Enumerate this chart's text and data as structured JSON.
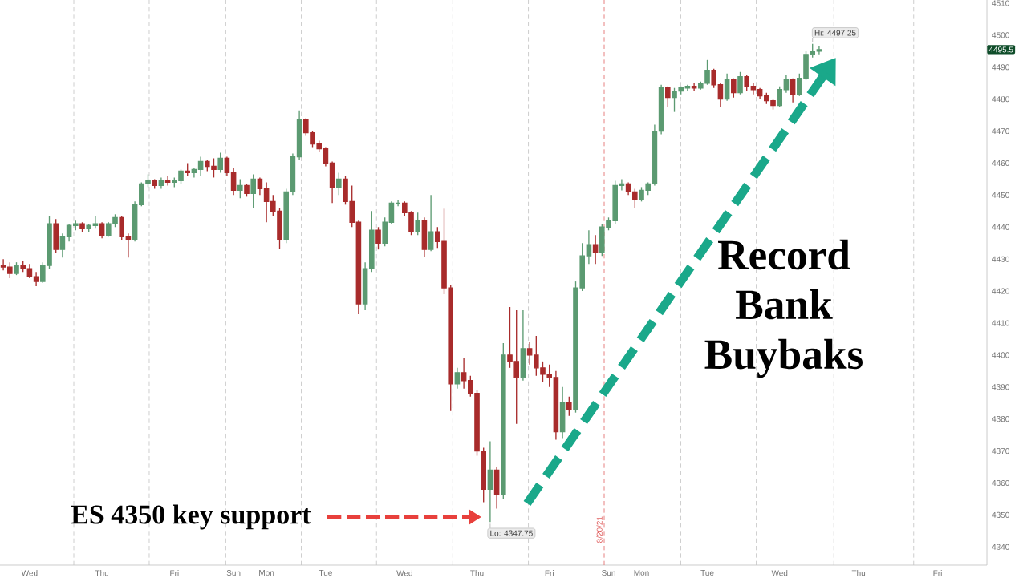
{
  "chart_data": {
    "type": "candlestick",
    "categories": [
      null,
      null,
      null,
      null,
      "Wed",
      null,
      null,
      null,
      null,
      null,
      null,
      null,
      null,
      null,
      null,
      "Thu",
      null,
      null,
      null,
      null,
      null,
      null,
      null,
      null,
      null,
      null,
      "Fri",
      null,
      null,
      null,
      null,
      null,
      null,
      null,
      null,
      "Sun",
      null,
      null,
      null,
      null,
      "Mon",
      null,
      null,
      null,
      null,
      null,
      null,
      null,
      null,
      "Tue",
      null,
      null,
      null,
      null,
      null,
      null,
      null,
      null,
      null,
      null,
      null,
      "Wed",
      null,
      null,
      null,
      null,
      null,
      null,
      null,
      null,
      null,
      null,
      "Thu",
      null,
      null,
      null,
      null,
      null,
      null,
      null,
      null,
      null,
      null,
      "Fri",
      null,
      null,
      null,
      null,
      null,
      null,
      null,
      null,
      "Sun",
      null,
      null,
      null,
      null,
      "Mon",
      null,
      null,
      null,
      null,
      null,
      null,
      null,
      null,
      null,
      "Tue",
      null,
      null,
      null,
      null,
      null,
      null,
      null,
      null,
      null,
      null,
      "Wed",
      null,
      null,
      null,
      null,
      null,
      null,
      null,
      null,
      null,
      null,
      null,
      "Thu",
      null,
      null,
      null,
      null,
      null,
      null,
      null,
      null,
      null,
      null,
      null,
      "Fri",
      null,
      null,
      null,
      null,
      null,
      null,
      null
    ],
    "ohlc": [
      [
        4428,
        4430,
        4426.5,
        4427.5
      ],
      [
        4427.5,
        4429,
        4424,
        4425.5
      ],
      [
        4425.5,
        4429,
        4425,
        4428
      ],
      [
        4428,
        4429.5,
        4426,
        4427
      ],
      [
        4427,
        4428.5,
        4424,
        4424.5
      ],
      [
        4424.5,
        4426,
        4421.5,
        4423
      ],
      [
        4423,
        4429,
        4422.5,
        4428
      ],
      [
        4428,
        4443.5,
        4427,
        4441
      ],
      [
        4441,
        4442.5,
        4432,
        4433
      ],
      [
        4433,
        4438,
        4430.5,
        4437
      ],
      [
        4437,
        4441,
        4435.5,
        4440.5
      ],
      [
        4440.5,
        4442,
        4439,
        4441
      ],
      [
        4441,
        4441.5,
        4438.5,
        4439.5
      ],
      [
        4439.5,
        4441,
        4438.5,
        4440.5
      ],
      [
        4440.5,
        4443.5,
        4439.5,
        4441
      ],
      [
        4441,
        4441.5,
        4436.5,
        4437.5
      ],
      [
        4437.5,
        4441.5,
        4437,
        4441
      ],
      [
        4441,
        4444,
        4440,
        4443
      ],
      [
        4443,
        4443.5,
        4436,
        4437
      ],
      [
        4437,
        4438,
        4430.5,
        4436
      ],
      [
        4436,
        4448,
        4435.5,
        4447
      ],
      [
        4447,
        4454,
        4446.5,
        4453.5
      ],
      [
        4453.5,
        4456.5,
        4452.5,
        4454.5
      ],
      [
        4454.5,
        4455,
        4452,
        4453
      ],
      [
        4453,
        4455.5,
        4452,
        4454.5
      ],
      [
        4454.5,
        4456,
        4453,
        4454
      ],
      [
        4454,
        4455.5,
        4452.5,
        4454.5
      ],
      [
        4454.5,
        4458,
        4453.5,
        4457.5
      ],
      [
        4457.5,
        4460,
        4456,
        4457
      ],
      [
        4457,
        4458.5,
        4455.5,
        4458
      ],
      [
        4458,
        4462,
        4456,
        4460.5
      ],
      [
        4460.5,
        4461,
        4457.5,
        4459
      ],
      [
        4459,
        4461.5,
        4455.5,
        4458
      ],
      [
        4458,
        4463.25,
        4457,
        4461.5
      ],
      [
        4461.5,
        4462,
        4456,
        4457
      ],
      [
        4457,
        4458.5,
        4450,
        4451.5
      ],
      [
        4451.5,
        4455,
        4449,
        4453
      ],
      [
        4453,
        4453.5,
        4449.5,
        4450.5
      ],
      [
        4450.5,
        4456.5,
        4446,
        4455
      ],
      [
        4455,
        4455.5,
        4450,
        4452
      ],
      [
        4452,
        4454,
        4441.5,
        4448
      ],
      [
        4448,
        4450,
        4443.5,
        4445
      ],
      [
        4445,
        4446,
        4433.25,
        4436
      ],
      [
        4436,
        4452,
        4435,
        4451
      ],
      [
        4451,
        4463,
        4450,
        4462
      ],
      [
        4462,
        4476.5,
        4461,
        4473.5
      ],
      [
        4473.5,
        4474,
        4468.5,
        4469.5
      ],
      [
        4469.5,
        4470,
        4465,
        4466
      ],
      [
        4466,
        4467,
        4463.5,
        4464.5
      ],
      [
        4464.5,
        4465,
        4459,
        4460
      ],
      [
        4460,
        4460.5,
        4447.5,
        4452.5
      ],
      [
        4452.5,
        4457,
        4450,
        4455
      ],
      [
        4455,
        4456,
        4447,
        4448
      ],
      [
        4448,
        4453,
        4440,
        4441.5
      ],
      [
        4441.5,
        4442,
        4412.75,
        4416
      ],
      [
        4416,
        4429,
        4414,
        4427
      ],
      [
        4427,
        4445,
        4426,
        4439
      ],
      [
        4439,
        4440,
        4433,
        4435
      ],
      [
        4435,
        4443,
        4434,
        4441.5
      ],
      [
        4441.5,
        4448,
        4441,
        4447.5
      ],
      [
        4447.5,
        4448.5,
        4446.5,
        4447.5
      ],
      [
        4447.5,
        4448,
        4443.5,
        4444.5
      ],
      [
        4444.5,
        4445,
        4437.5,
        4438.5
      ],
      [
        4438.5,
        4444.5,
        4437.5,
        4442
      ],
      [
        4442,
        4443,
        4430.75,
        4433
      ],
      [
        4433,
        4450,
        4432.5,
        4438.5
      ],
      [
        4438.5,
        4440,
        4433.5,
        4435.5
      ],
      [
        4435.5,
        4445.75,
        4419,
        4421
      ],
      [
        4421,
        4422,
        4382.5,
        4391
      ],
      [
        4391,
        4396,
        4389.5,
        4394.5
      ],
      [
        4394.5,
        4399,
        4389.5,
        4392
      ],
      [
        4392,
        4393.5,
        4387,
        4388
      ],
      [
        4388,
        4389,
        4368.5,
        4370
      ],
      [
        4370,
        4371,
        4354,
        4358
      ],
      [
        4358,
        4373,
        4347.75,
        4364
      ],
      [
        4364,
        4365,
        4352,
        4356.5
      ],
      [
        4356.5,
        4403.75,
        4355,
        4400
      ],
      [
        4400,
        4415,
        4396,
        4398
      ],
      [
        4398,
        4414,
        4378.5,
        4393
      ],
      [
        4393,
        4414,
        4392,
        4402
      ],
      [
        4402,
        4404,
        4397,
        4400
      ],
      [
        4400,
        4406,
        4393.5,
        4396
      ],
      [
        4396,
        4398,
        4391.5,
        4394
      ],
      [
        4394,
        4397,
        4390,
        4393
      ],
      [
        4393,
        4395,
        4373.5,
        4376
      ],
      [
        4376,
        4390,
        4374,
        4385
      ],
      [
        4385,
        4387,
        4381,
        4383
      ],
      [
        4383,
        4423,
        4382,
        4421
      ],
      [
        4421,
        4435,
        4420,
        4431
      ],
      [
        4431,
        4439,
        4428.5,
        4434.5
      ],
      [
        4434.5,
        4437.5,
        4428.5,
        4432
      ],
      [
        4432,
        4441,
        4431,
        4440
      ],
      [
        4440,
        4443,
        4439,
        4442
      ],
      [
        4442,
        4454.5,
        4441,
        4453
      ],
      [
        4453,
        4455,
        4451.5,
        4453.5
      ],
      [
        4453.5,
        4454,
        4450,
        4451
      ],
      [
        4451,
        4452,
        4446,
        4448.5
      ],
      [
        4448.5,
        4452.5,
        4448,
        4451.5
      ],
      [
        4451.5,
        4454,
        4450,
        4453.5
      ],
      [
        4453.5,
        4472,
        4453,
        4470
      ],
      [
        4470,
        4484.5,
        4469,
        4483.5
      ],
      [
        4483.5,
        4484,
        4477.5,
        4480.5
      ],
      [
        4480.5,
        4483.5,
        4476,
        4482.5
      ],
      [
        4482.5,
        4484,
        4481.5,
        4483.5
      ],
      [
        4483.5,
        4484.5,
        4482.5,
        4484
      ],
      [
        4484,
        4485,
        4482.5,
        4483.5
      ],
      [
        4483.5,
        4485.5,
        4483,
        4485
      ],
      [
        4485,
        4492.25,
        4484.5,
        4489
      ],
      [
        4489,
        4489.5,
        4483.5,
        4484.5
      ],
      [
        4484.5,
        4485,
        4477.5,
        4480
      ],
      [
        4480,
        4488,
        4479.5,
        4486
      ],
      [
        4486,
        4486.5,
        4480.5,
        4482
      ],
      [
        4482,
        4488.5,
        4481.5,
        4487
      ],
      [
        4487,
        4487.5,
        4482.5,
        4484
      ],
      [
        4484,
        4485,
        4481.5,
        4483
      ],
      [
        4483,
        4483.5,
        4480,
        4481
      ],
      [
        4481,
        4482,
        4478.5,
        4479.5
      ],
      [
        4479.5,
        4480,
        4476.75,
        4478
      ],
      [
        4478,
        4484,
        4477.5,
        4483
      ],
      [
        4483,
        4487.5,
        4482,
        4486
      ],
      [
        4486,
        4486.5,
        4479,
        4481.5
      ],
      [
        4481.5,
        4488,
        4481,
        4486.5
      ],
      [
        4486.5,
        4495,
        4486,
        4494
      ],
      [
        4494,
        4497.25,
        4493,
        4495
      ],
      [
        4495,
        4496.5,
        4494,
        4495.5
      ],
      null,
      null,
      null,
      null,
      null,
      null,
      null,
      null,
      null,
      null,
      null,
      null,
      null,
      null,
      null,
      null,
      null,
      null,
      null,
      null,
      null,
      null,
      null,
      null,
      null
    ],
    "colors": [
      "#a82b2b",
      "#a82b2b",
      "#5b9a71",
      "#a82b2b",
      "#a82b2b",
      "#a82b2b",
      "#5b9a71",
      "#5b9a71",
      "#a82b2b",
      "#5b9a71",
      "#5b9a71",
      "#5b9a71",
      "#a82b2b",
      "#5b9a71",
      "#5b9a71",
      "#a82b2b",
      "#5b9a71",
      "#5b9a71",
      "#a82b2b",
      "#a82b2b",
      "#5b9a71",
      "#5b9a71",
      "#5b9a71",
      "#a82b2b",
      "#5b9a71",
      "#a82b2b",
      "#5b9a71",
      "#5b9a71",
      "#a82b2b",
      "#5b9a71",
      "#5b9a71",
      "#a82b2b",
      "#a82b2b",
      "#5b9a71",
      "#a82b2b",
      "#a82b2b",
      "#5b9a71",
      "#a82b2b",
      "#5b9a71",
      "#a82b2b",
      "#a82b2b",
      "#a82b2b",
      "#a82b2b",
      "#5b9a71",
      "#5b9a71",
      "#5b9a71",
      "#a82b2b",
      "#a82b2b",
      "#a82b2b",
      "#a82b2b",
      "#a82b2b",
      "#5b9a71",
      "#a82b2b",
      "#a82b2b",
      "#a82b2b",
      "#5b9a71",
      "#5b9a71",
      "#a82b2b",
      "#5b9a71",
      "#5b9a71",
      "#5b9a71",
      "#a82b2b",
      "#a82b2b",
      "#5b9a71",
      "#a82b2b",
      "#5b9a71",
      "#a82b2b",
      "#a82b2b",
      "#a82b2b",
      "#5b9a71",
      "#a82b2b",
      "#a82b2b",
      "#a82b2b",
      "#a82b2b",
      "#5b9a71",
      "#a82b2b",
      "#5b9a71",
      "#a82b2b",
      "#a82b2b",
      "#5b9a71",
      "#a82b2b",
      "#a82b2b",
      "#a82b2b",
      "#a82b2b",
      "#a82b2b",
      "#5b9a71",
      "#a82b2b",
      "#5b9a71",
      "#5b9a71",
      "#5b9a71",
      "#a82b2b",
      "#5b9a71",
      "#5b9a71",
      "#5b9a71",
      "#5b9a71",
      "#a82b2b",
      "#a82b2b",
      "#5b9a71",
      "#5b9a71",
      "#5b9a71",
      "#5b9a71",
      "#a82b2b",
      "#5b9a71",
      "#5b9a71",
      "#5b9a71",
      "#a82b2b",
      "#5b9a71",
      "#5b9a71",
      "#a82b2b",
      "#a82b2b",
      "#5b9a71",
      "#a82b2b",
      "#5b9a71",
      "#a82b2b",
      "#a82b2b",
      "#a82b2b",
      "#a82b2b",
      "#a82b2b",
      "#5b9a71",
      "#5b9a71",
      "#a82b2b",
      "#5b9a71",
      "#5b9a71",
      "#5b9a71",
      "#5b9a71",
      null,
      null,
      null,
      null,
      null,
      null,
      null,
      null,
      null,
      null,
      null,
      null,
      null,
      null,
      null,
      null,
      null,
      null,
      null,
      null,
      null,
      null,
      null,
      null,
      null
    ],
    "ylim": [
      4334.3,
      4511
    ],
    "yticks": [
      4340,
      4350,
      4360,
      4370,
      4380,
      4390,
      4400,
      4410,
      4420,
      4430,
      4440,
      4450,
      4460,
      4470,
      4480,
      4490,
      4500,
      4510
    ],
    "annotations": [
      "Hi: 4497.25",
      "Lo: 4347.75",
      {
        "text": "4495.5",
        "y": 4495.5
      },
      "8/20/21",
      "ES 4350 key support",
      "Record Bank Buybaks"
    ]
  }
}
